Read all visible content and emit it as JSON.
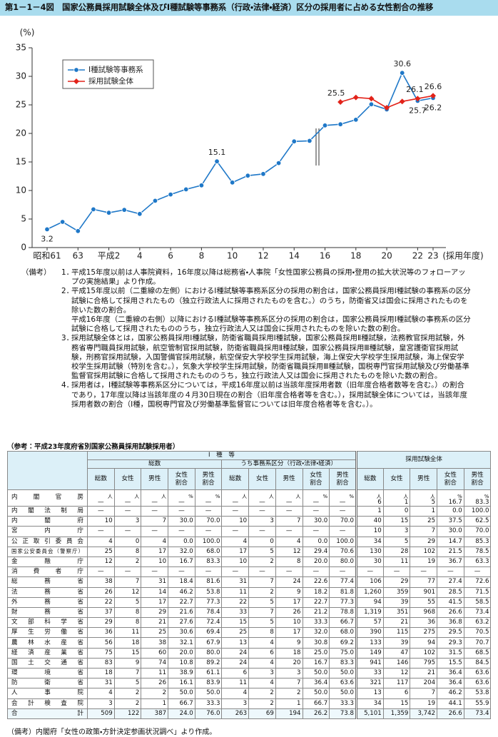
{
  "header": {
    "title": "第1－1－4図　国家公務員採用試験全体及びⅠ種試験等事務系（行政・法律・経済）区分の採用者に占める女性割合の推移"
  },
  "chart_data": {
    "type": "line",
    "y_label": "(%)",
    "x_label": "(採用年度)",
    "categories": [
      "昭和61",
      null,
      "63",
      null,
      "平成2",
      null,
      "4",
      null,
      "6",
      null,
      "8",
      null,
      "10",
      null,
      "12",
      null,
      "14",
      null,
      "16",
      null,
      "18",
      null,
      "20",
      null,
      "22",
      "23"
    ],
    "series": [
      {
        "name": "Ⅰ種試験等事務系",
        "color": "#1f78c8",
        "marker": "circle",
        "values": [
          3.2,
          4.5,
          2.9,
          6.7,
          6.1,
          6.6,
          5.9,
          8.2,
          9.3,
          10.2,
          10.9,
          15.1,
          11.4,
          12.6,
          12.9,
          14.8,
          18.6,
          18.7,
          21.4,
          21.6,
          22.4,
          25.1,
          24.2,
          30.6,
          25.7,
          26.2
        ],
        "value_labels": [
          "3.2",
          null,
          null,
          null,
          null,
          null,
          null,
          null,
          null,
          null,
          null,
          "15.1",
          null,
          null,
          null,
          null,
          null,
          null,
          null,
          null,
          null,
          null,
          null,
          "30.6",
          "25.7",
          "26.2"
        ]
      },
      {
        "name": "採用試験全体",
        "color": "#e2231a",
        "marker": "diamond",
        "values": [
          null,
          null,
          null,
          null,
          null,
          null,
          null,
          null,
          null,
          null,
          null,
          null,
          null,
          null,
          null,
          null,
          null,
          null,
          null,
          25.5,
          26.3,
          26.1,
          24.5,
          25.6,
          26.1,
          26.6
        ],
        "value_labels": [
          null,
          null,
          null,
          null,
          null,
          null,
          null,
          null,
          null,
          null,
          null,
          null,
          null,
          null,
          null,
          null,
          null,
          null,
          null,
          "25.5",
          null,
          null,
          null,
          null,
          "26.1",
          "26.6"
        ]
      }
    ],
    "ylim": [
      0,
      35
    ],
    "yticks": [
      0,
      5,
      10,
      15,
      20,
      25,
      30,
      35
    ],
    "grid": false,
    "legend": "upper left"
  },
  "notes": {
    "label": "（備考）",
    "items": [
      {
        "number": "1．",
        "paragraphs": [
          "平成15年度以前は人事院資料，16年度以降は総務省・人事院「女性国家公務員の採用・登用の拡大状況等のフォローアップの実施結果」より作成。"
        ]
      },
      {
        "number": "2．",
        "paragraphs": [
          "平成15年度以前（二重線の左側）におけるⅠ種試験等事務系区分の採用の割合は，国家公務員採用Ⅰ種試験の事務系の区分試験に合格して採用されたもの（独立行政法人に採用されたものを含む。）のうち，防衛省又は国会に採用されたものを除いた数の割合。",
          "平成16年度（二重線の右側）以降におけるⅠ種試験等事務系区分の採用の割合は，国家公務員採用Ⅰ種試験の事務系の区分試験に合格して採用されたもののうち，独立行政法人又は国会に採用されたものを除いた数の割合。"
        ]
      },
      {
        "number": "3．",
        "paragraphs": [
          "採用試験全体とは，国家公務員採用Ⅰ種試験，防衛省職員採用Ⅰ種試験，国家公務員採用Ⅱ種試験，法務教官採用試験，外務省専門職員採用試験，航空管制官採用試験，防衛省職員採用Ⅱ種試験，国家公務員採用Ⅲ種試験，皇宮護衛官採用試験，刑務官採用試験，入国警備官採用試験，航空保安大学校学生採用試験，海上保安大学校学生採用試験，海上保安学校学生採用試験（特別を含む。），気象大学校学生採用試験，防衛省職員採用Ⅲ種試験，国税専門官採用試験及び労働基準監督官採用試験に合格して採用されたもののうち，独立行政法人又は国会に採用されたものを除いた数の割合。"
        ]
      },
      {
        "number": "4．",
        "paragraphs": [
          "採用者は，Ⅰ種試験等事務系区分については，平成16年度以前は当該年度採用者数（旧年度合格者数等を含む。）の割合であり，17年度以降は当該年度の４月30日現在の割合（旧年度合格者等を含む。），採用試験全体については，当該年度採用者数の割合（Ⅰ種，国税専門官及び労働基準監督官については旧年度合格者等を含む。）。"
        ]
      }
    ]
  },
  "table": {
    "title": "（参考：平成23年度府省別国家公務員採用試験採用者）",
    "group_headers": [
      "Ⅰ　種　等",
      "採用試験全体"
    ],
    "sub_headers": [
      "総数",
      "うち事務系区分（行政・法律・経済）"
    ],
    "columns": [
      "総数",
      "女性",
      "男性",
      "女性割合",
      "男性割合",
      "総数",
      "女性",
      "男性",
      "女性割合",
      "男性割合",
      "総数",
      "女性",
      "男性",
      "女性割合",
      "男性割合"
    ],
    "units": [
      "人",
      "人",
      "人",
      "%",
      "%",
      "人",
      "人",
      "人",
      "%",
      "%",
      "人",
      "人",
      "人",
      "%",
      "%"
    ],
    "rows": [
      {
        "name": "内閣官房",
        "cells": [
          "—",
          "—",
          "—",
          "—",
          "—",
          "—",
          "—",
          "—",
          "—",
          "—",
          "6",
          "1",
          "5",
          "16.7",
          "83.3"
        ]
      },
      {
        "name": "内閣法制局",
        "cells": [
          "—",
          "—",
          "—",
          "—",
          "—",
          "—",
          "—",
          "—",
          "—",
          "—",
          "1",
          "0",
          "1",
          "0.0",
          "100.0"
        ]
      },
      {
        "name": "内閣府",
        "cells": [
          "10",
          "3",
          "7",
          "30.0",
          "70.0",
          "10",
          "3",
          "7",
          "30.0",
          "70.0",
          "40",
          "15",
          "25",
          "37.5",
          "62.5"
        ]
      },
      {
        "name": "宮内庁",
        "cells": [
          "—",
          "—",
          "—",
          "—",
          "—",
          "—",
          "—",
          "—",
          "—",
          "—",
          "10",
          "3",
          "7",
          "30.0",
          "70.0"
        ]
      },
      {
        "name": "公正取引委員会",
        "cells": [
          "4",
          "0",
          "4",
          "0.0",
          "100.0",
          "4",
          "0",
          "4",
          "0.0",
          "100.0",
          "34",
          "5",
          "29",
          "14.7",
          "85.3"
        ]
      },
      {
        "name": "国家公安委員会（警察庁）",
        "cells": [
          "25",
          "8",
          "17",
          "32.0",
          "68.0",
          "17",
          "5",
          "12",
          "29.4",
          "70.6",
          "130",
          "28",
          "102",
          "21.5",
          "78.5"
        ]
      },
      {
        "name": "金融庁",
        "cells": [
          "12",
          "2",
          "10",
          "16.7",
          "83.3",
          "10",
          "2",
          "8",
          "20.0",
          "80.0",
          "30",
          "11",
          "19",
          "36.7",
          "63.3"
        ]
      },
      {
        "name": "消費者庁",
        "cells": [
          "—",
          "—",
          "—",
          "—",
          "—",
          "—",
          "—",
          "—",
          "—",
          "—",
          "—",
          "—",
          "—",
          "—",
          "—"
        ]
      },
      {
        "name": "総務省",
        "cells": [
          "38",
          "7",
          "31",
          "18.4",
          "81.6",
          "31",
          "7",
          "24",
          "22.6",
          "77.4",
          "106",
          "29",
          "77",
          "27.4",
          "72.6"
        ]
      },
      {
        "name": "法務省",
        "cells": [
          "26",
          "12",
          "14",
          "46.2",
          "53.8",
          "11",
          "2",
          "9",
          "18.2",
          "81.8",
          "1,260",
          "359",
          "901",
          "28.5",
          "71.5"
        ]
      },
      {
        "name": "外務省",
        "cells": [
          "22",
          "5",
          "17",
          "22.7",
          "77.3",
          "22",
          "5",
          "17",
          "22.7",
          "77.3",
          "94",
          "39",
          "55",
          "41.5",
          "58.5"
        ]
      },
      {
        "name": "財務省",
        "cells": [
          "37",
          "8",
          "29",
          "21.6",
          "78.4",
          "33",
          "7",
          "26",
          "21.2",
          "78.8",
          "1,319",
          "351",
          "968",
          "26.6",
          "73.4"
        ]
      },
      {
        "name": "文部科学省",
        "cells": [
          "29",
          "8",
          "21",
          "27.6",
          "72.4",
          "15",
          "5",
          "10",
          "33.3",
          "66.7",
          "57",
          "21",
          "36",
          "36.8",
          "63.2"
        ]
      },
      {
        "name": "厚生労働省",
        "cells": [
          "36",
          "11",
          "25",
          "30.6",
          "69.4",
          "25",
          "8",
          "17",
          "32.0",
          "68.0",
          "390",
          "115",
          "275",
          "29.5",
          "70.5"
        ]
      },
      {
        "name": "農林水産省",
        "cells": [
          "56",
          "18",
          "38",
          "32.1",
          "67.9",
          "13",
          "4",
          "9",
          "30.8",
          "69.2",
          "133",
          "39",
          "94",
          "29.3",
          "70.7"
        ]
      },
      {
        "name": "経済産業省",
        "cells": [
          "75",
          "15",
          "60",
          "20.0",
          "80.0",
          "24",
          "6",
          "18",
          "25.0",
          "75.0",
          "149",
          "47",
          "102",
          "31.5",
          "68.5"
        ]
      },
      {
        "name": "国土交通省",
        "cells": [
          "83",
          "9",
          "74",
          "10.8",
          "89.2",
          "24",
          "4",
          "20",
          "16.7",
          "83.3",
          "941",
          "146",
          "795",
          "15.5",
          "84.5"
        ]
      },
      {
        "name": "環境省",
        "cells": [
          "18",
          "7",
          "11",
          "38.9",
          "61.1",
          "6",
          "3",
          "3",
          "50.0",
          "50.0",
          "33",
          "12",
          "21",
          "36.4",
          "63.6"
        ]
      },
      {
        "name": "防衛省",
        "cells": [
          "31",
          "5",
          "26",
          "16.1",
          "83.9",
          "11",
          "4",
          "7",
          "36.4",
          "63.6",
          "321",
          "117",
          "204",
          "36.4",
          "63.6"
        ]
      },
      {
        "name": "人事院",
        "cells": [
          "4",
          "2",
          "2",
          "50.0",
          "50.0",
          "4",
          "2",
          "2",
          "50.0",
          "50.0",
          "13",
          "6",
          "7",
          "46.2",
          "53.8"
        ]
      },
      {
        "name": "会計検査院",
        "cells": [
          "3",
          "2",
          "1",
          "66.7",
          "33.3",
          "3",
          "2",
          "1",
          "66.7",
          "33.3",
          "34",
          "15",
          "19",
          "44.1",
          "55.9"
        ]
      },
      {
        "name": "合計",
        "cells": [
          "509",
          "122",
          "387",
          "24.0",
          "76.0",
          "263",
          "69",
          "194",
          "26.2",
          "73.8",
          "5,101",
          "1,359",
          "3,742",
          "26.6",
          "73.4"
        ]
      }
    ]
  },
  "footer": "（備考）内閣府「女性の政策・方針決定参画状況調べ」より作成。"
}
